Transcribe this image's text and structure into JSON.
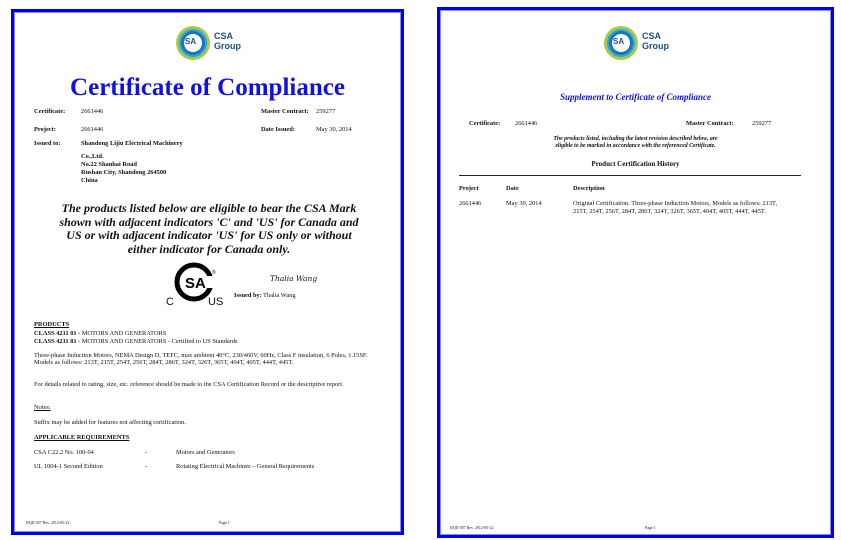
{
  "logo": {
    "line1": "CSA",
    "line2": "Group",
    "mark_text": "SA"
  },
  "page1": {
    "title": "Certificate of Compliance",
    "fields": {
      "certificate_label": "Certificate:",
      "certificate_value": "2661446",
      "master_contract_label": "Master Contract:",
      "master_contract_value": "259277",
      "project_label": "Project:",
      "project_value": "2661446",
      "date_issued_label": "Date Issued:",
      "date_issued_value": "May 30, 2014",
      "issued_to_label": "Issued to:",
      "issued_to_lines": [
        "Shandong Lijiu Electrical Machinery",
        "Co.,Ltd.",
        "No.22 Shanhai Road",
        "Rushan City, Shandong 264500",
        "China"
      ]
    },
    "statement": "The products listed below are eligible to bear the CSA Mark shown with adjacent indicators 'C' and 'US' for Canada and US or with adjacent indicator 'US' for US only or without either indicator for Canada only.",
    "mark": {
      "left": "C",
      "right": "US",
      "registered": "®"
    },
    "signature": "Thalia Wang",
    "issued_by_label": "Issued by:",
    "issued_by_value": "Thalia Wang",
    "products_heading": "PRODUCTS",
    "classes": [
      {
        "code": "CLASS 4211 01",
        "desc": "- MOTORS AND GENERATORS"
      },
      {
        "code": "CLASS 4211 81",
        "desc": "- MOTORS AND GENERATORS - Certified to US Standards"
      }
    ],
    "product_desc": "Three-phase Induction Motors, NEMA Design D, TEFC, max ambient 40°C, 230/460V, 60Hz, Class F insulation, 6 Poles, 1.15SF. Models as follows: 213T, 215T, 254T, 256T, 284T, 286T, 324T, 326T, 365T, 404T, 405T, 444T, 445T.",
    "details_note": "For details related to rating, size, etc. reference should be made to the CSA Certification Record or the descriptive report.",
    "notes_heading": "Notes:",
    "notes_text": "Suffix may be added for features not affecting certification.",
    "requirements_heading": "APPLICABLE REQUIREMENTS",
    "requirements": [
      {
        "standard": "CSA C22.2 No. 100-04",
        "dash": "-",
        "title": "Motors and Generators"
      },
      {
        "standard": "UL 1004-1 Second Edition",
        "dash": "-",
        "title": "Rotating Electrical Machines – General Requirements"
      }
    ],
    "footer_left": "DQD 507 Rev. 2012-05-22",
    "footer_page": "Page 1"
  },
  "page2": {
    "title": "Supplement to Certificate of Compliance",
    "certificate_label": "Certificate:",
    "certificate_value": "2661446",
    "master_contract_label": "Master Contract:",
    "master_contract_value": "259277",
    "intro": [
      "The products listed, including the latest revision described below, are",
      "eligible to be marked in accordance with the referenced Certificate."
    ],
    "history_heading": "Product Certification History",
    "columns": [
      "Project",
      "Date",
      "Description"
    ],
    "rows": [
      {
        "project": "2661446",
        "date": "May 30, 2014",
        "description": [
          "Original Certification. Three-phase Induction Motors, Models as follows: 213T,",
          "215T, 254T, 256T, 284T, 286T, 324T, 326T, 365T, 404T, 405T, 444T, 445T."
        ]
      }
    ],
    "footer_left": "DQD 507 Rev. 2012-05-22",
    "footer_page": "Page 1"
  },
  "colors": {
    "border": "#0000ee",
    "title": "#1010e0"
  }
}
